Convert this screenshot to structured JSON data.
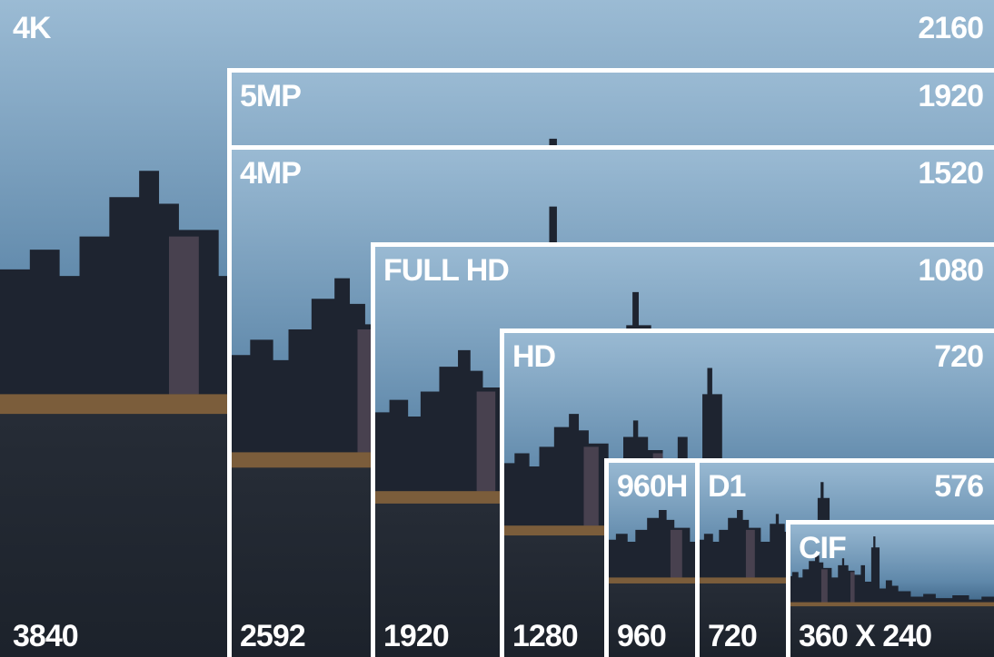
{
  "frames": [
    {
      "name": "4K",
      "height": "2160",
      "width": "3840"
    },
    {
      "name": "5MP",
      "height": "1920"
    },
    {
      "name": "4MP",
      "height": "1520",
      "width": "2592"
    },
    {
      "name": "FULL HD",
      "height": "1080",
      "width": "1920"
    },
    {
      "name": "HD",
      "height": "720",
      "width": "1280"
    },
    {
      "name": "960H",
      "width": "960"
    },
    {
      "name": "D1",
      "height": "576",
      "width": "720"
    },
    {
      "name": "CIF",
      "width": "360 X 240"
    }
  ]
}
